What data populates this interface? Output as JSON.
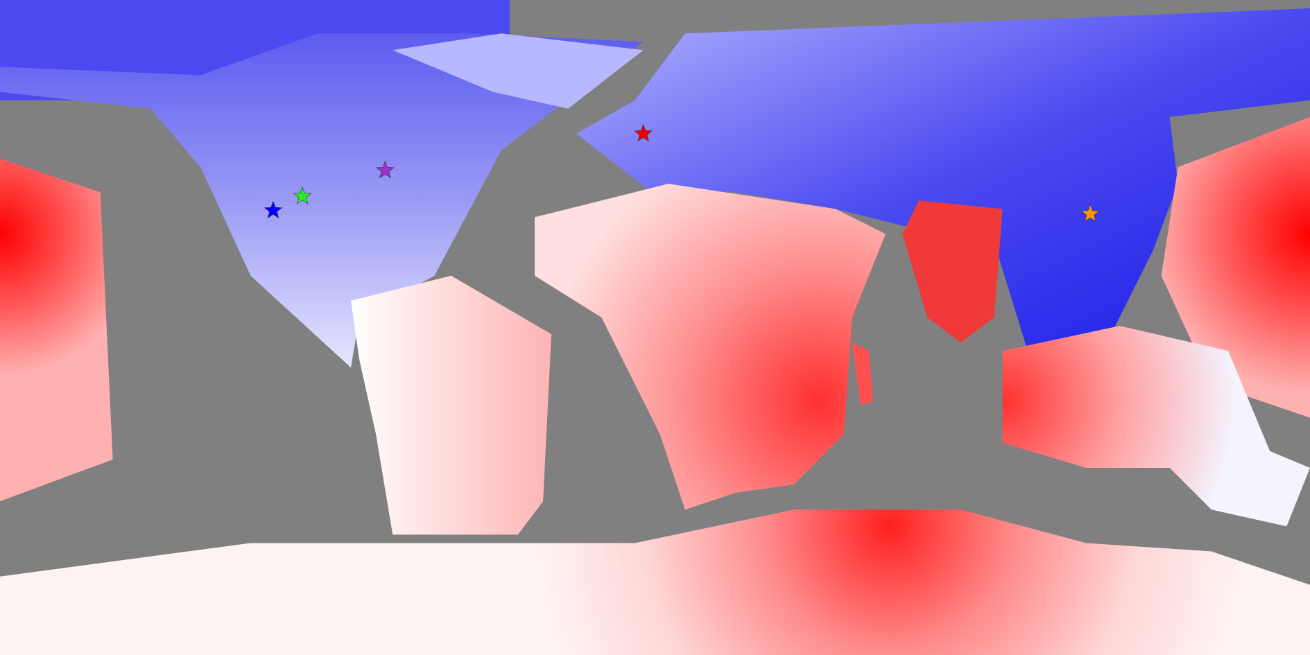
{
  "map": {
    "markers": [
      {
        "color": "#0000ff"
      },
      {
        "color": "#22ee22"
      },
      {
        "color": "#9933cc"
      },
      {
        "color": "#ee0000"
      },
      {
        "color": "#ff9900"
      }
    ]
  }
}
